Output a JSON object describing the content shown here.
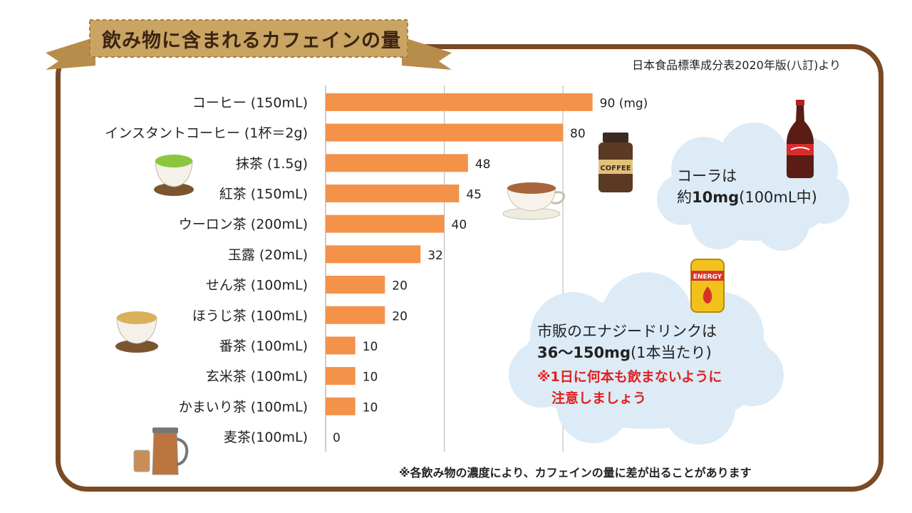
{
  "title": "飲み物に含まれるカフェインの量",
  "source": "日本食品標準成分表2020年版(八訂)より",
  "footnote": "※各飲み物の濃度により、カフェインの量に差が出ることがあります",
  "cola": {
    "line1": "コーラは",
    "line2_prefix": "約",
    "line2_bold": "10mg",
    "line2_suffix": "(100mL中)"
  },
  "energy": {
    "line1": "市販のエナジードリンクは",
    "line2_bold": "36～150mg",
    "line2_suffix": "(1本当たり)",
    "note1": "※1日に何本も飲まないように",
    "note2": "注意しましょう"
  },
  "illustrations": {
    "coffee_jar_label": "COFFEE",
    "energy_can_label": "ENERGY"
  },
  "colors": {
    "bar": "#f4924a",
    "frame": "#7a4a24",
    "ribbon": "#c9a463",
    "cloud": "#dcebf6",
    "note": "#e02020"
  },
  "chart_data": {
    "type": "bar",
    "orientation": "horizontal",
    "categories": [
      "コーヒー (150mL)",
      "インスタントコーヒー (1杯＝2g)",
      "抹茶 (1.5g)",
      "紅茶 (150mL)",
      "ウーロン茶 (200mL)",
      "玉露 (20mL)",
      "せん茶 (100mL)",
      "ほうじ茶 (100mL)",
      "番茶 (100mL)",
      "玄米茶 (100mL)",
      "かまいり茶 (100mL)",
      "麦茶(100mL)"
    ],
    "values": [
      90,
      80,
      48,
      45,
      40,
      32,
      20,
      20,
      10,
      10,
      10,
      0
    ],
    "value_labels": [
      "90 (mg)",
      "80",
      "48",
      "45",
      "40",
      "32",
      "20",
      "20",
      "10",
      "10",
      "10",
      "0"
    ],
    "xlim": [
      0,
      100
    ],
    "grid": true
  }
}
